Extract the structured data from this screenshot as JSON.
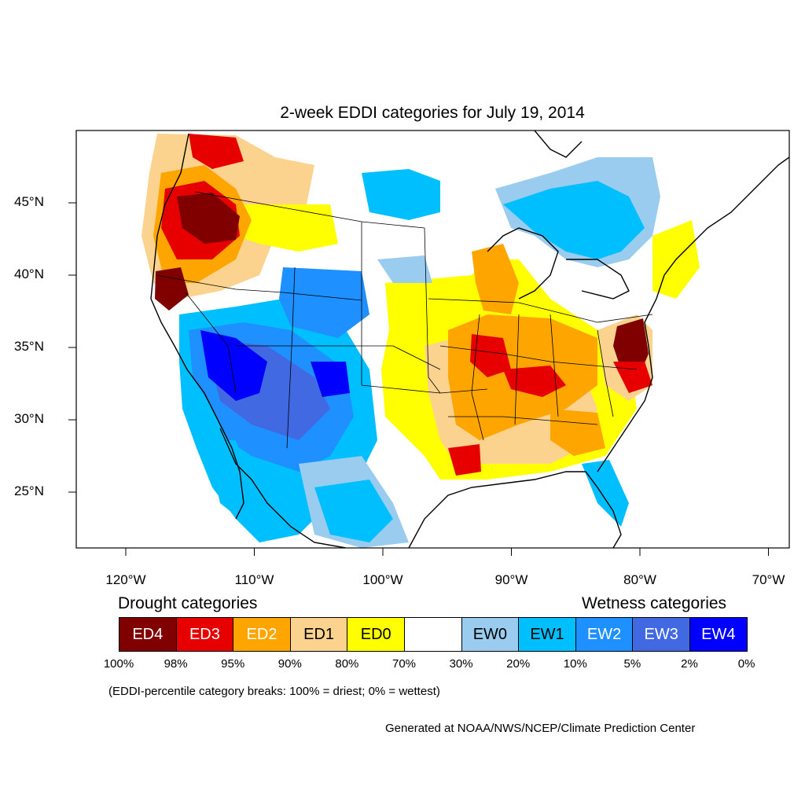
{
  "title": "2-week EDDI categories for July 19, 2014",
  "lat_ticks": [
    {
      "label": "45°N",
      "lat": 45
    },
    {
      "label": "40°N",
      "lat": 40
    },
    {
      "label": "35°N",
      "lat": 35
    },
    {
      "label": "30°N",
      "lat": 30
    },
    {
      "label": "25°N",
      "lat": 25
    }
  ],
  "lon_ticks": [
    {
      "label": "120°W",
      "lon": -120
    },
    {
      "label": "110°W",
      "lon": -110
    },
    {
      "label": "100°W",
      "lon": -100
    },
    {
      "label": "90°W",
      "lon": -90
    },
    {
      "label": "80°W",
      "lon": -80
    },
    {
      "label": "70°W",
      "lon": -70
    }
  ],
  "legend": {
    "drought_heading": "Drought categories",
    "wetness_heading": "Wetness categories",
    "categories": [
      {
        "label": "ED4",
        "color": "#800000",
        "text_color": "#ffffff"
      },
      {
        "label": "ED3",
        "color": "#e60000",
        "text_color": "#ffffff"
      },
      {
        "label": "ED2",
        "color": "#ffa500",
        "text_color": "#ffffff"
      },
      {
        "label": "ED1",
        "color": "#fcd38e",
        "text_color": "#000000"
      },
      {
        "label": "ED0",
        "color": "#ffff00",
        "text_color": "#000000"
      },
      {
        "label": "",
        "color": "#ffffff",
        "text_color": "#000000"
      },
      {
        "label": "EW0",
        "color": "#99ccee",
        "text_color": "#000000"
      },
      {
        "label": "EW1",
        "color": "#00bfff",
        "text_color": "#000000"
      },
      {
        "label": "EW2",
        "color": "#1e90ff",
        "text_color": "#ffffff"
      },
      {
        "label": "EW3",
        "color": "#4169e1",
        "text_color": "#ffffff"
      },
      {
        "label": "EW4",
        "color": "#0000ff",
        "text_color": "#ffffff"
      }
    ],
    "breaks": [
      "100%",
      "98%",
      "95%",
      "90%",
      "80%",
      "70%",
      "30%",
      "20%",
      "10%",
      "5%",
      "2%",
      "0%"
    ]
  },
  "note": "(EDDI-percentile category breaks: 100% = driest; 0% = wettest)",
  "credit": "Generated at NOAA/NWS/NCEP/Climate Prediction Center"
}
